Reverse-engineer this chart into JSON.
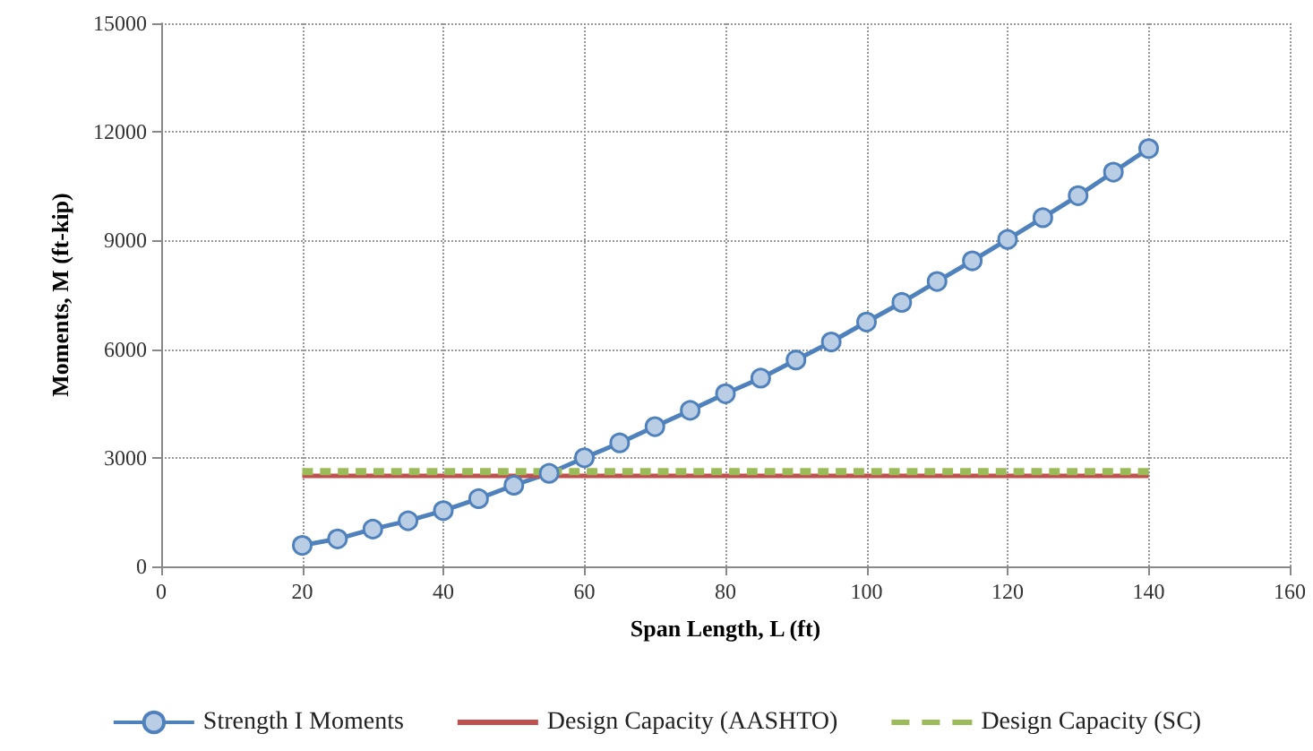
{
  "chart_data": {
    "type": "line",
    "xlabel": "Span Length, L (ft)",
    "ylabel": "Moments, M (ft-kip)",
    "xlim": [
      0,
      160
    ],
    "xticks": [
      0,
      20,
      40,
      60,
      80,
      100,
      120,
      140,
      160
    ],
    "ylim": [
      0,
      15000
    ],
    "yticks": [
      0,
      3000,
      6000,
      9000,
      12000,
      15000
    ],
    "grid": true,
    "legend": "bottom",
    "series": [
      {
        "name": "Strength I Moments",
        "color": "#4f81bd",
        "marker": "circle",
        "line_style": "solid",
        "x": [
          20,
          25,
          30,
          35,
          40,
          45,
          50,
          55,
          60,
          65,
          70,
          75,
          80,
          85,
          90,
          95,
          100,
          105,
          110,
          115,
          120,
          125,
          130,
          135,
          140
        ],
        "values": [
          580,
          760,
          1030,
          1260,
          1540,
          1870,
          2240,
          2570,
          3000,
          3410,
          3860,
          4310,
          4770,
          5200,
          5700,
          6200,
          6750,
          7290,
          7870,
          8440,
          9030,
          9630,
          10240,
          10890,
          11540
        ]
      },
      {
        "name": "Design Capacity (AASHTO)",
        "color": "#c0504d",
        "marker": "none",
        "line_style": "solid",
        "x": [
          20,
          140
        ],
        "values": [
          2500,
          2500
        ]
      },
      {
        "name": "Design Capacity (SC)",
        "color": "#9bbb59",
        "marker": "none",
        "line_style": "dashed",
        "x": [
          20,
          140
        ],
        "values": [
          2620,
          2620
        ]
      }
    ]
  }
}
